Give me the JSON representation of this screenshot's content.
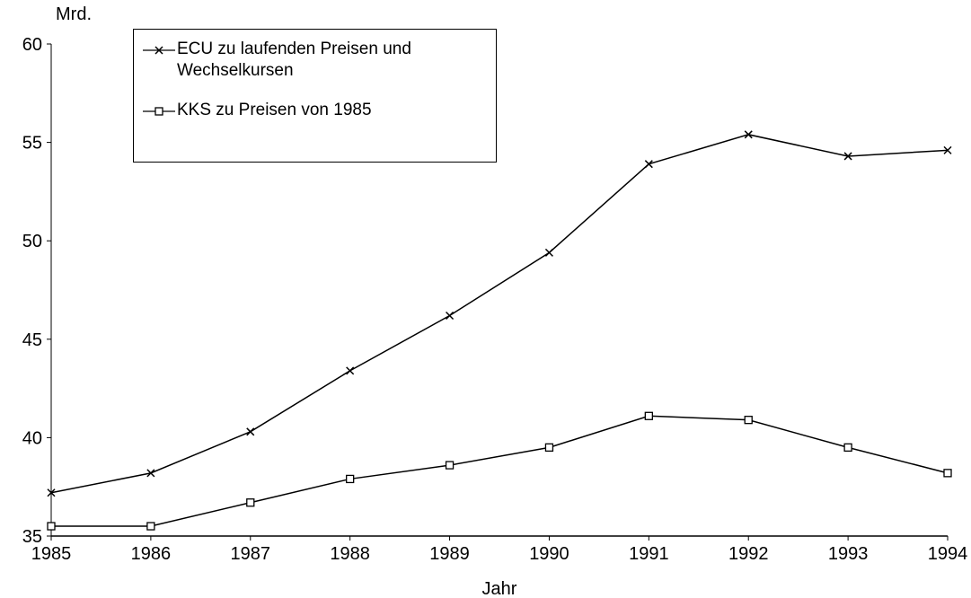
{
  "chart_data": {
    "type": "line",
    "y_label": "Mrd.",
    "x_label": "Jahr",
    "x": [
      1985,
      1986,
      1987,
      1988,
      1989,
      1990,
      1991,
      1992,
      1993,
      1994
    ],
    "series": [
      {
        "name": "ECU zu laufenden Preisen und Wechselkursen",
        "color": "#000000",
        "marker": "x",
        "values": [
          37.2,
          38.2,
          40.3,
          43.4,
          46.2,
          49.4,
          53.9,
          55.4,
          54.3,
          54.6
        ]
      },
      {
        "name": "KKS zu Preisen von 1985",
        "color": "#000000",
        "marker": "square",
        "values": [
          35.5,
          35.5,
          36.7,
          37.9,
          38.6,
          39.5,
          41.1,
          40.9,
          39.5,
          38.2
        ]
      }
    ],
    "xlim": [
      1985,
      1994
    ],
    "xticks": [
      1985,
      1986,
      1987,
      1988,
      1989,
      1990,
      1991,
      1992,
      1993,
      1994
    ],
    "ylim": [
      35,
      60
    ],
    "yticks": [
      35,
      40,
      45,
      50,
      55,
      60
    ],
    "grid": false,
    "legend": "upper left"
  }
}
